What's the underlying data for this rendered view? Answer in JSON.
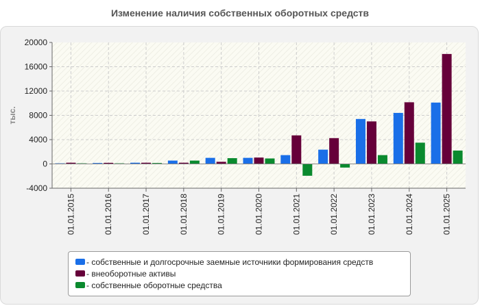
{
  "chart_data": {
    "type": "bar",
    "title": "Изменение наличия собственных оборотных средств",
    "ylabel": "тыс.",
    "xlabel": "",
    "ylim": [
      -4000,
      20000
    ],
    "yticks": [
      -4000,
      0,
      4000,
      8000,
      12000,
      16000,
      20000
    ],
    "categories": [
      "01.01.2015",
      "01.01.2016",
      "01.01.2017",
      "01.01.2018",
      "01.01.2019",
      "01.01.2020",
      "01.01.2021",
      "01.01.2022",
      "01.01.2023",
      "01.01.2024",
      "01.01.2025"
    ],
    "series": [
      {
        "name": "собственные и долгосрочные заемные источники формирования средств",
        "color": "#1a6fe8",
        "values": [
          100,
          150,
          200,
          550,
          1000,
          1000,
          1450,
          2350,
          7400,
          8400,
          10100
        ]
      },
      {
        "name": "внеоборотные активы",
        "color": "#66003a",
        "values": [
          200,
          180,
          200,
          200,
          350,
          1050,
          4700,
          4250,
          7000,
          10150,
          18100
        ]
      },
      {
        "name": "собственные оборотные средства",
        "color": "#0a8a2e",
        "values": [
          100,
          100,
          150,
          550,
          950,
          900,
          -1950,
          -600,
          1450,
          3500,
          2200
        ]
      }
    ],
    "grid": true,
    "legend_position": "bottom"
  }
}
